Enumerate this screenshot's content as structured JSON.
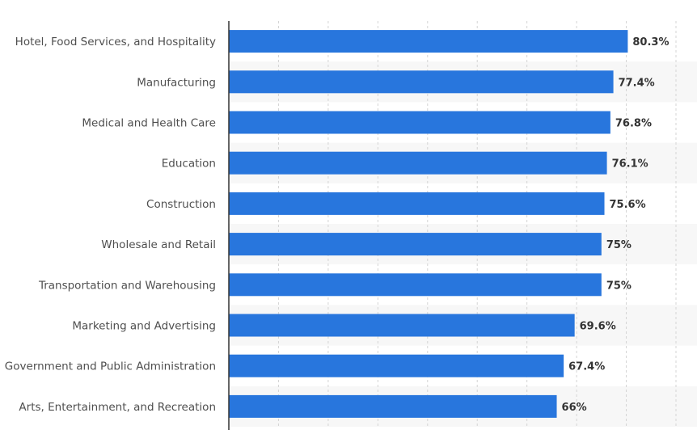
{
  "chart_data": {
    "type": "bar",
    "orientation": "horizontal",
    "categories": [
      "Hotel, Food Services, and Hospitality",
      "Manufacturing",
      "Medical and Health Care",
      "Education",
      "Construction",
      "Wholesale and Retail",
      "Transportation and Warehousing",
      "Marketing and Advertising",
      "Government and Public Administration",
      "Arts, Entertainment, and Recreation"
    ],
    "values": [
      80.3,
      77.4,
      76.8,
      76.1,
      75.6,
      75,
      75,
      69.6,
      67.4,
      66
    ],
    "data_labels": [
      "80.3%",
      "77.4%",
      "76.8%",
      "76.1%",
      "75.6%",
      "75%",
      "75%",
      "69.6%",
      "67.4%",
      "66%"
    ],
    "title": "",
    "xlabel": "",
    "ylabel": "",
    "xlim": [
      0,
      90
    ],
    "grid": "vertical dashed",
    "legend": "none",
    "colors": {
      "bar": "#2876dd",
      "band": "#f7f7f7",
      "grid": "#d4d4d4",
      "axis": "#333333",
      "category_label": "#4f4f4f",
      "value_label": "#333333"
    }
  }
}
